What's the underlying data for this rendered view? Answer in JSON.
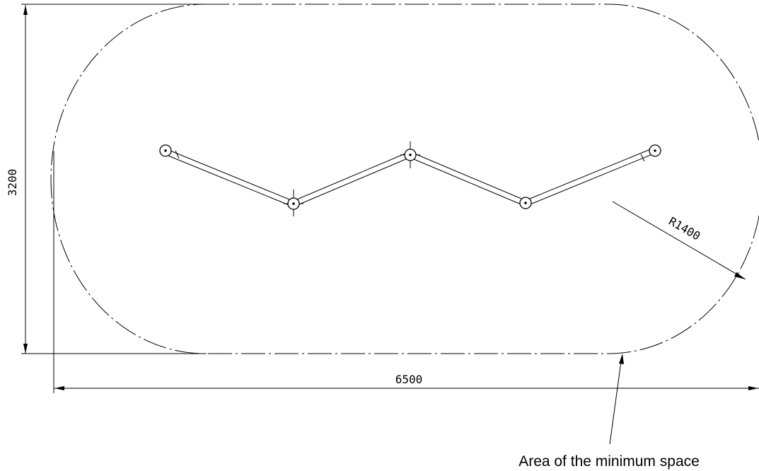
{
  "dimensions": {
    "height_label": "3200",
    "width_label": "6500",
    "radius_label": "R1400"
  },
  "caption": "Area of the minimum space"
}
